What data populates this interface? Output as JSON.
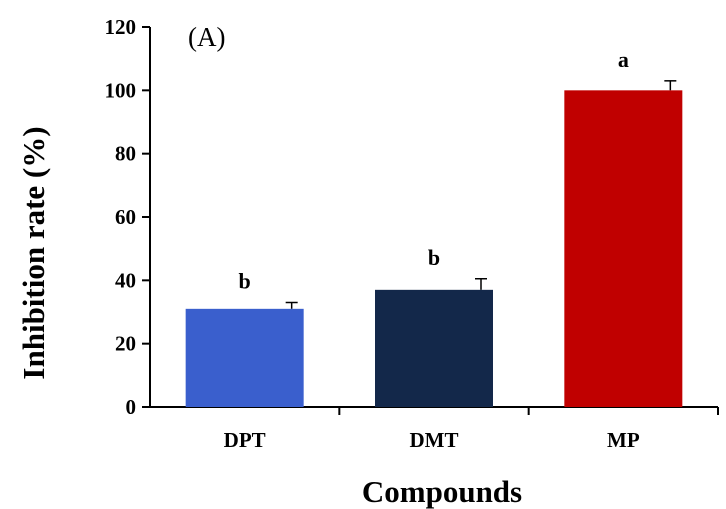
{
  "chart_data": {
    "type": "bar",
    "panel_label": "(A)",
    "title": "",
    "xlabel": "Compounds",
    "ylabel": "Inhibition rate (%)",
    "ylim": [
      0,
      120
    ],
    "yticks": [
      0,
      20,
      40,
      60,
      80,
      100,
      120
    ],
    "categories": [
      "DPT",
      "DMT",
      "MP"
    ],
    "values": [
      31,
      37,
      100
    ],
    "errors": [
      2,
      3.5,
      3
    ],
    "significance": [
      "b",
      "b",
      "a"
    ],
    "colors": [
      "#3a5fcd",
      "#13284a",
      "#c00000"
    ],
    "grid": false,
    "legend": "none"
  }
}
